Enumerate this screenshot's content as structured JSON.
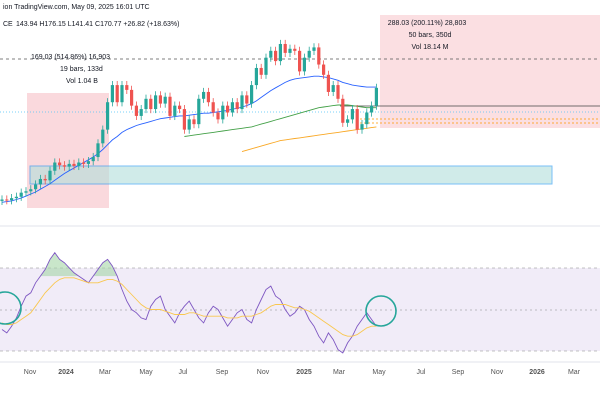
{
  "header": {
    "pub_line": "ion TradingView.com, May 09, 2025 16:01 UTC",
    "symbol_prefix": "CE",
    "ohlc": "143.94 H176.15 L141.41 C170.77 +26.82 (+18.63%)"
  },
  "colors": {
    "up": "#26a69a",
    "down": "#ef5350",
    "ma_blue": "#2962ff",
    "ma_green": "#43a047",
    "ma_orange": "#f9a825",
    "rsi_line": "#7e57c2",
    "rsi_ma": "#f9c74f",
    "range_red": "#f8c9cf",
    "box_teal": "#b2dfdb",
    "circle": "#26a69a"
  },
  "annotations": {
    "left_range": {
      "line1": "169.03 (514.86%) 16,903",
      "line2": "19 bars, 133d",
      "line3": "Vol 1.04 B"
    },
    "right_range": {
      "line1": "288.03 (200.11%) 28,803",
      "line2": "50 bars, 350d",
      "line3": "Vol 18.14 M"
    }
  },
  "chart_data": [
    {
      "type": "candlestick",
      "title": "",
      "xlabel": "",
      "ylabel": "",
      "x_tick_labels": [
        "Nov",
        "2024",
        "Mar",
        "May",
        "Jul",
        "Sep",
        "Nov",
        "2025",
        "Mar",
        "May",
        "Jul",
        "Sep",
        "Nov",
        "2026",
        "Mar"
      ],
      "candles": [
        {
          "o": 6,
          "c": 8
        },
        {
          "o": 8,
          "c": 7
        },
        {
          "o": 7,
          "c": 10
        },
        {
          "o": 10,
          "c": 12
        },
        {
          "o": 12,
          "c": 18
        },
        {
          "o": 18,
          "c": 20
        },
        {
          "o": 20,
          "c": 23
        },
        {
          "o": 23,
          "c": 30
        },
        {
          "o": 30,
          "c": 38
        },
        {
          "o": 38,
          "c": 36
        },
        {
          "o": 36,
          "c": 50
        },
        {
          "o": 50,
          "c": 62
        },
        {
          "o": 62,
          "c": 58
        },
        {
          "o": 58,
          "c": 56
        },
        {
          "o": 56,
          "c": 60
        },
        {
          "o": 60,
          "c": 57
        },
        {
          "o": 57,
          "c": 62
        },
        {
          "o": 62,
          "c": 60
        },
        {
          "o": 60,
          "c": 64
        },
        {
          "o": 64,
          "c": 70
        },
        {
          "o": 70,
          "c": 90
        },
        {
          "o": 90,
          "c": 110
        },
        {
          "o": 110,
          "c": 150
        },
        {
          "o": 150,
          "c": 175
        },
        {
          "o": 175,
          "c": 150
        },
        {
          "o": 150,
          "c": 175
        },
        {
          "o": 175,
          "c": 168
        },
        {
          "o": 168,
          "c": 145
        },
        {
          "o": 145,
          "c": 130
        },
        {
          "o": 130,
          "c": 140
        },
        {
          "o": 140,
          "c": 155
        },
        {
          "o": 155,
          "c": 140
        },
        {
          "o": 140,
          "c": 160
        },
        {
          "o": 160,
          "c": 148
        },
        {
          "o": 148,
          "c": 158
        },
        {
          "o": 158,
          "c": 130
        },
        {
          "o": 130,
          "c": 145
        },
        {
          "o": 145,
          "c": 140
        },
        {
          "o": 140,
          "c": 110
        },
        {
          "o": 110,
          "c": 125
        },
        {
          "o": 125,
          "c": 118
        },
        {
          "o": 118,
          "c": 155
        },
        {
          "o": 155,
          "c": 165
        },
        {
          "o": 165,
          "c": 150
        },
        {
          "o": 150,
          "c": 135
        },
        {
          "o": 135,
          "c": 125
        },
        {
          "o": 125,
          "c": 145
        },
        {
          "o": 145,
          "c": 135
        },
        {
          "o": 135,
          "c": 150
        },
        {
          "o": 150,
          "c": 140
        },
        {
          "o": 140,
          "c": 160
        },
        {
          "o": 160,
          "c": 148
        },
        {
          "o": 148,
          "c": 175
        },
        {
          "o": 175,
          "c": 200
        },
        {
          "o": 200,
          "c": 190
        },
        {
          "o": 190,
          "c": 215
        },
        {
          "o": 215,
          "c": 225
        },
        {
          "o": 225,
          "c": 210
        },
        {
          "o": 210,
          "c": 235
        },
        {
          "o": 235,
          "c": 222
        },
        {
          "o": 222,
          "c": 228
        },
        {
          "o": 228,
          "c": 225
        },
        {
          "o": 225,
          "c": 195
        },
        {
          "o": 195,
          "c": 215
        },
        {
          "o": 215,
          "c": 225
        },
        {
          "o": 225,
          "c": 230
        },
        {
          "o": 230,
          "c": 205
        },
        {
          "o": 205,
          "c": 190
        },
        {
          "o": 190,
          "c": 165
        },
        {
          "o": 165,
          "c": 175
        },
        {
          "o": 175,
          "c": 155
        },
        {
          "o": 155,
          "c": 120
        },
        {
          "o": 120,
          "c": 125
        },
        {
          "o": 125,
          "c": 140
        },
        {
          "o": 140,
          "c": 110
        },
        {
          "o": 110,
          "c": 118
        },
        {
          "o": 118,
          "c": 135
        },
        {
          "o": 135,
          "c": 145
        },
        {
          "o": 145,
          "c": 171
        }
      ],
      "ma_blue": [
        4,
        5,
        6,
        8,
        10,
        13,
        16,
        19,
        23,
        27,
        31,
        36,
        41,
        46,
        50,
        54,
        58,
        62,
        66,
        70,
        75,
        81,
        88,
        95,
        100,
        106,
        110,
        113,
        116,
        118,
        120,
        122,
        124,
        126,
        127,
        128,
        129,
        130,
        130,
        131,
        132,
        133,
        134,
        134,
        135,
        136,
        137,
        138,
        140,
        141,
        143,
        145,
        148,
        152,
        157,
        162,
        167,
        171,
        175,
        179,
        182,
        184,
        185,
        186,
        187,
        188,
        188,
        187,
        186,
        184,
        182,
        179,
        177,
        175,
        174,
        173,
        172,
        172,
        172
      ],
      "ma_green_from": 38,
      "ma_green": [
        100,
        101,
        102,
        103,
        104,
        105,
        106,
        107,
        108,
        109,
        110,
        111,
        112,
        113,
        114,
        116,
        118,
        120,
        122,
        124,
        126,
        128,
        130,
        132,
        134,
        136,
        138,
        140,
        142,
        143,
        144,
        145,
        146,
        146,
        146,
        145,
        144,
        143,
        142,
        142,
        142
      ],
      "ma_orange_from": 50,
      "ma_orange": [
        78,
        80,
        82,
        84,
        86,
        88,
        90,
        92,
        94,
        95,
        96,
        97,
        98,
        99,
        100,
        101,
        102,
        103,
        104,
        105,
        106,
        107,
        108,
        109,
        110,
        111,
        112,
        113,
        114
      ],
      "projection": [
        [
          171,
          150
        ],
        [
          176,
          195
        ],
        [
          187,
          158
        ],
        [
          197,
          240
        ]
      ]
    },
    {
      "type": "line",
      "title": "",
      "levels": [
        70,
        50,
        30
      ],
      "series": [
        {
          "name": "",
          "values": [
            38,
            36,
            40,
            45,
            52,
            58,
            60,
            66,
            70,
            74,
            80,
            84,
            80,
            78,
            75,
            72,
            70,
            68,
            66,
            70,
            74,
            78,
            80,
            76,
            70,
            62,
            55,
            50,
            48,
            45,
            44,
            52,
            56,
            58,
            50,
            46,
            42,
            48,
            52,
            55,
            50,
            45,
            42,
            48,
            52,
            50,
            45,
            40,
            44,
            48,
            50,
            44,
            42,
            50,
            56,
            62,
            64,
            58,
            56,
            50,
            46,
            48,
            52,
            50,
            44,
            40,
            34,
            30,
            36,
            32,
            26,
            24,
            30,
            34,
            40,
            44,
            48,
            44,
            40
          ]
        },
        {
          "name": "",
          "values": [
            42,
            41,
            41,
            42,
            44,
            46,
            48,
            52,
            56,
            60,
            63,
            66,
            68,
            69,
            69,
            69,
            68,
            67,
            66,
            66,
            66,
            67,
            68,
            68,
            67,
            65,
            62,
            59,
            56,
            53,
            51,
            50,
            50,
            50,
            49,
            48,
            47,
            47,
            47,
            48,
            48,
            47,
            46,
            46,
            46,
            46,
            46,
            45,
            45,
            45,
            46,
            46,
            46,
            47,
            48,
            50,
            52,
            53,
            53,
            53,
            52,
            51,
            51,
            50,
            49,
            47,
            45,
            43,
            41,
            39,
            37,
            35,
            34,
            34,
            35,
            37,
            39,
            40,
            40
          ]
        }
      ]
    }
  ]
}
